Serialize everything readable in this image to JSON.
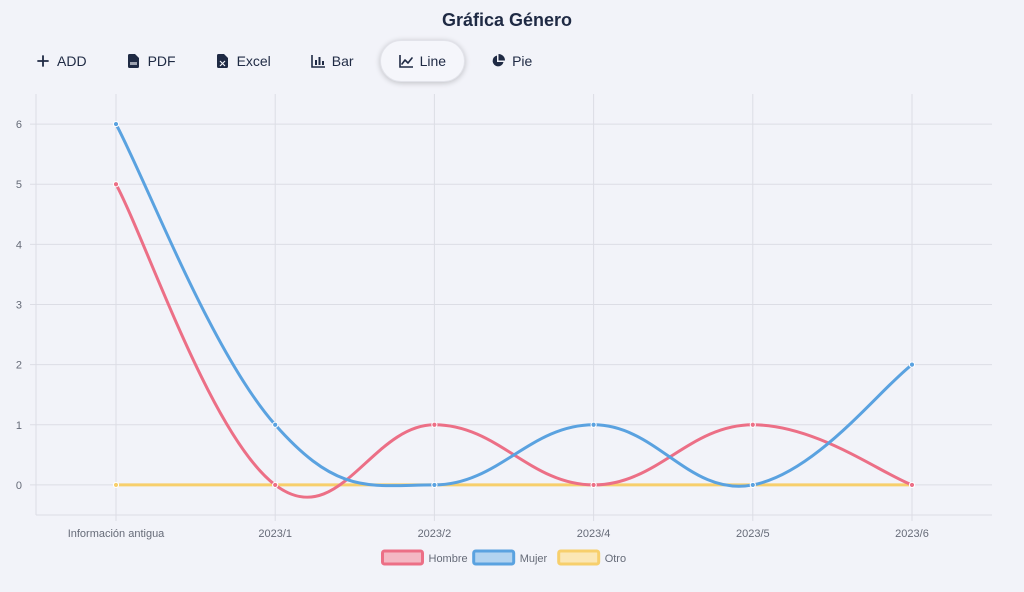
{
  "title": "Gráfica Género",
  "toolbar": {
    "items": [
      {
        "id": "add",
        "label": "ADD",
        "icon": "plus-icon",
        "active": false
      },
      {
        "id": "pdf",
        "label": "PDF",
        "icon": "file-pdf-icon",
        "active": false
      },
      {
        "id": "excel",
        "label": "Excel",
        "icon": "file-excel-icon",
        "active": false
      },
      {
        "id": "bar",
        "label": "Bar",
        "icon": "bar-chart-icon",
        "active": false
      },
      {
        "id": "line",
        "label": "Line",
        "icon": "line-chart-icon",
        "active": true
      },
      {
        "id": "pie",
        "label": "Pie",
        "icon": "pie-chart-icon",
        "active": false
      }
    ]
  },
  "chart_data": {
    "type": "line",
    "categories": [
      "Información antigua",
      "2023/1",
      "2023/2",
      "2023/4",
      "2023/5",
      "2023/6"
    ],
    "series": [
      {
        "name": "Hombre",
        "values": [
          5,
          0,
          1,
          0,
          1,
          0
        ],
        "color": "#ec6f86",
        "fill": "#f4b8c4"
      },
      {
        "name": "Mujer",
        "values": [
          6,
          1,
          0,
          1,
          0,
          2
        ],
        "color": "#5aa2e0",
        "fill": "#b2d3f0"
      },
      {
        "name": "Otro",
        "values": [
          0,
          0,
          0,
          0,
          0,
          0
        ],
        "color": "#f7cf6c",
        "fill": "#fbe7b6"
      }
    ],
    "yticks": [
      0,
      1,
      2,
      3,
      4,
      5,
      6
    ],
    "ylim": [
      -0.5,
      6.5
    ],
    "grid": true,
    "legend_position": "bottom"
  }
}
